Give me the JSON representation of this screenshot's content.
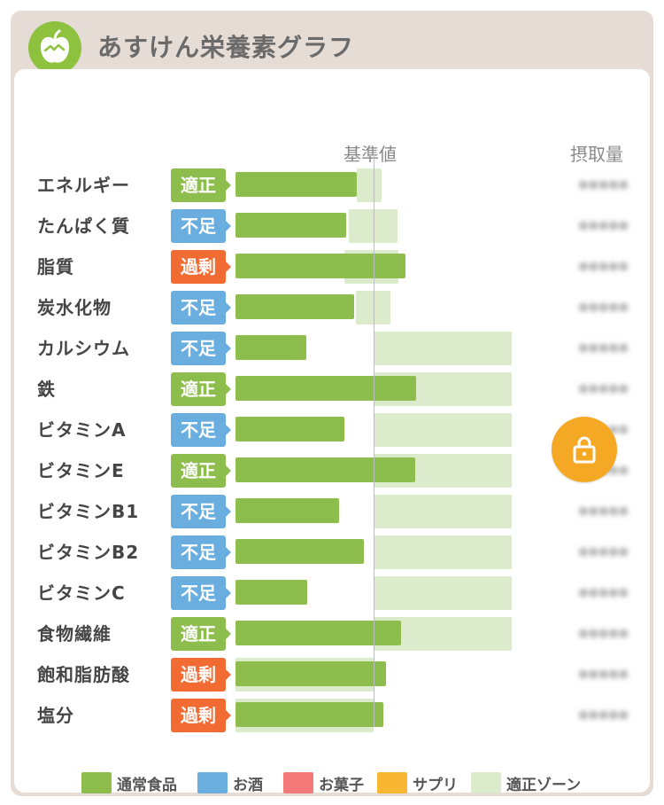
{
  "header": {
    "title": "あすけん栄養素グラフ",
    "icon": "apple-icon"
  },
  "columns": {
    "reference": "基準値",
    "intake": "摂取量"
  },
  "colors": {
    "normal_food": "#8dbd4d",
    "alcohol": "#6aaee0",
    "snack": "#f47a7a",
    "supplement": "#f7b733",
    "zone": "#dcebcb",
    "tag_ok": "#8dbd4d",
    "tag_low": "#6aaee0",
    "tag_over": "#f26b32"
  },
  "chart_data": {
    "type": "bar",
    "reference_value": 100,
    "value_unit": "percent of reference (estimated)",
    "rows": [
      {
        "name": "エネルギー",
        "status": "適正",
        "value": 88,
        "zone": [
          88,
          106
        ]
      },
      {
        "name": "たんぱく質",
        "status": "不足",
        "value": 80,
        "zone": [
          82,
          117
        ]
      },
      {
        "name": "脂質",
        "status": "過剰",
        "value": 123,
        "zone": [
          79,
          118
        ]
      },
      {
        "name": "炭水化物",
        "status": "不足",
        "value": 86,
        "zone": [
          87,
          112
        ]
      },
      {
        "name": "カルシウム",
        "status": "不足",
        "value": 51,
        "zone": [
          100,
          200
        ]
      },
      {
        "name": "鉄",
        "status": "適正",
        "value": 131,
        "zone": [
          100,
          200
        ]
      },
      {
        "name": "ビタミンA",
        "status": "不足",
        "value": 79,
        "zone": [
          100,
          200
        ]
      },
      {
        "name": "ビタミンE",
        "status": "適正",
        "value": 130,
        "zone": [
          100,
          200
        ]
      },
      {
        "name": "ビタミンB1",
        "status": "不足",
        "value": 75,
        "zone": [
          100,
          200
        ]
      },
      {
        "name": "ビタミンB2",
        "status": "不足",
        "value": 93,
        "zone": [
          100,
          200
        ]
      },
      {
        "name": "ビタミンC",
        "status": "不足",
        "value": 52,
        "zone": [
          100,
          200
        ]
      },
      {
        "name": "食物繊維",
        "status": "適正",
        "value": 120,
        "zone": [
          100,
          200
        ]
      },
      {
        "name": "飽和脂肪酸",
        "status": "過剰",
        "value": 109,
        "zone": [
          0,
          100
        ]
      },
      {
        "name": "塩分",
        "status": "過剰",
        "value": 107,
        "zone": [
          0,
          100
        ]
      }
    ]
  },
  "intake_values_blurred": true,
  "lock_button": {
    "icon": "lock-icon"
  },
  "legend": [
    {
      "label": "通常食品",
      "color": "#8dbd4d"
    },
    {
      "label": "お酒",
      "color": "#6aaee0"
    },
    {
      "label": "お菓子",
      "color": "#f47a7a"
    },
    {
      "label": "サプリ",
      "color": "#f7b733"
    },
    {
      "label": "適正ゾーン",
      "color": "#dcebcb"
    }
  ]
}
